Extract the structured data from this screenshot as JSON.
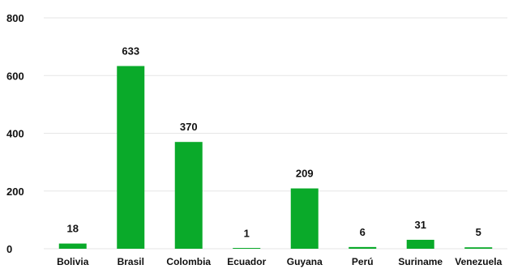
{
  "chart_data": {
    "type": "bar",
    "categories": [
      "Bolivia",
      "Brasil",
      "Colombia",
      "Ecuador",
      "Guyana",
      "Perú",
      "Suriname",
      "Venezuela"
    ],
    "values": [
      18,
      633,
      370,
      1,
      209,
      6,
      31,
      5
    ],
    "data_labels": [
      "18",
      "633",
      "370",
      "1",
      "209",
      "6",
      "31",
      "5"
    ],
    "title": "",
    "xlabel": "",
    "ylabel": "",
    "ylim": [
      0,
      800
    ],
    "yticks": [
      0,
      200,
      400,
      600,
      800
    ],
    "ytick_labels": [
      "0",
      "200",
      "400",
      "600",
      "800"
    ],
    "grid": true,
    "legend": "none",
    "bar_color": "#0aaa2a"
  }
}
